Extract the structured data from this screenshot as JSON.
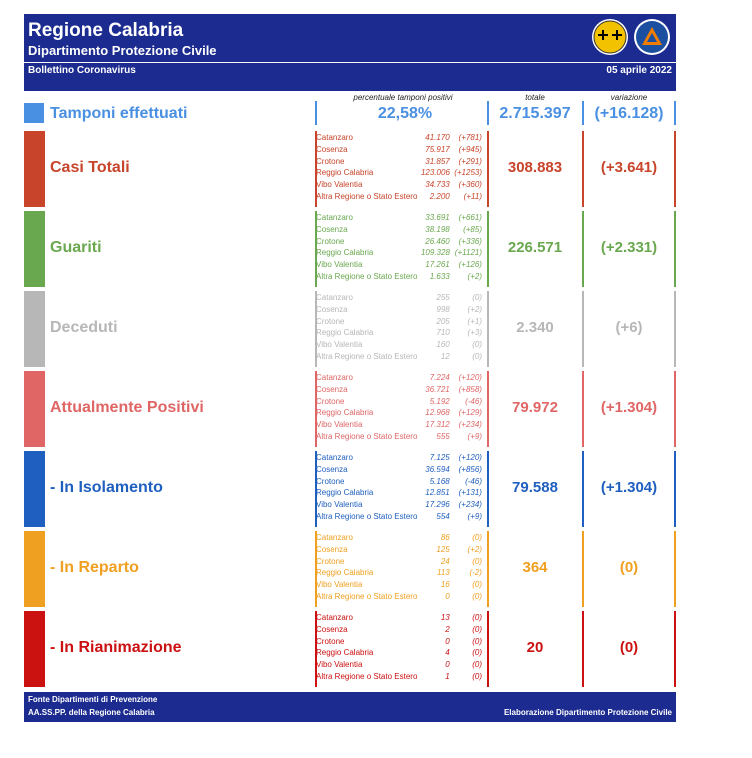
{
  "header": {
    "title": "Regione Calabria",
    "subtitle": "Dipartimento Protezione Civile",
    "bulletin": "Bollettino Coronavirus",
    "date": "05 aprile 2022"
  },
  "columns": {
    "pct_label": "percentuale tamponi positivi",
    "total_label": "totale",
    "variation_label": "variazione"
  },
  "tamponi": {
    "label": "Tamponi effettuati",
    "pct": "22,58%",
    "total": "2.715.397",
    "variation": "(+16.128)",
    "color": "#4a90e2"
  },
  "sections": [
    {
      "label": "Casi Totali",
      "color": "#c8442a",
      "total": "308.883",
      "variation": "(+3.641)",
      "rows": [
        {
          "name": "Catanzaro",
          "value": "41.170",
          "delta": "(+781)"
        },
        {
          "name": "Cosenza",
          "value": "75.917",
          "delta": "(+945)"
        },
        {
          "name": "Crotone",
          "value": "31.857",
          "delta": "(+291)"
        },
        {
          "name": "Reggio Calabria",
          "value": "123.006",
          "delta": "(+1253)"
        },
        {
          "name": "Vibo Valentia",
          "value": "34.733",
          "delta": "(+360)"
        },
        {
          "name": "Altra Regione o Stato Estero",
          "value": "2.200",
          "delta": "(+11)"
        }
      ]
    },
    {
      "label": "Guariti",
      "color": "#6aa84f",
      "total": "226.571",
      "variation": "(+2.331)",
      "rows": [
        {
          "name": "Catanzaro",
          "value": "33.691",
          "delta": "(+661)"
        },
        {
          "name": "Cosenza",
          "value": "38.198",
          "delta": "(+85)"
        },
        {
          "name": "Crotone",
          "value": "26.460",
          "delta": "(+336)"
        },
        {
          "name": "Reggio Calabria",
          "value": "109.328",
          "delta": "(+1121)"
        },
        {
          "name": "Vibo Valentia",
          "value": "17.261",
          "delta": "(+126)"
        },
        {
          "name": "Altra Regione o Stato Estero",
          "value": "1.633",
          "delta": "(+2)"
        }
      ]
    },
    {
      "label": "Deceduti",
      "color": "#b7b7b7",
      "total": "2.340",
      "variation": "(+6)",
      "rows": [
        {
          "name": "Catanzaro",
          "value": "255",
          "delta": "(0)"
        },
        {
          "name": "Cosenza",
          "value": "998",
          "delta": "(+2)"
        },
        {
          "name": "Crotone",
          "value": "205",
          "delta": "(+1)"
        },
        {
          "name": "Reggio Calabria",
          "value": "710",
          "delta": "(+3)"
        },
        {
          "name": "Vibo Valentia",
          "value": "160",
          "delta": "(0)"
        },
        {
          "name": "Altra Regione o Stato Estero",
          "value": "12",
          "delta": "(0)"
        }
      ]
    },
    {
      "label": "Attualmente Positivi",
      "color": "#e06666",
      "total": "79.972",
      "variation": "(+1.304)",
      "rows": [
        {
          "name": "Catanzaro",
          "value": "7.224",
          "delta": "(+120)"
        },
        {
          "name": "Cosenza",
          "value": "36.721",
          "delta": "(+858)"
        },
        {
          "name": "Crotone",
          "value": "5.192",
          "delta": "(-46)"
        },
        {
          "name": "Reggio Calabria",
          "value": "12.968",
          "delta": "(+129)"
        },
        {
          "name": "Vibo Valentia",
          "value": "17.312",
          "delta": "(+234)"
        },
        {
          "name": "Altra Regione o Stato Estero",
          "value": "555",
          "delta": "(+9)"
        }
      ]
    },
    {
      "label": "- In Isolamento",
      "color": "#1f5fbf",
      "total": "79.588",
      "variation": "(+1.304)",
      "rows": [
        {
          "name": "Catanzaro",
          "value": "7.125",
          "delta": "(+120)"
        },
        {
          "name": "Cosenza",
          "value": "36.594",
          "delta": "(+856)"
        },
        {
          "name": "Crotone",
          "value": "5.168",
          "delta": "(-46)"
        },
        {
          "name": "Reggio Calabria",
          "value": "12.851",
          "delta": "(+131)"
        },
        {
          "name": "Vibo Valentia",
          "value": "17.296",
          "delta": "(+234)"
        },
        {
          "name": "Altra Regione o Stato Estero",
          "value": "554",
          "delta": "(+9)"
        }
      ]
    },
    {
      "label": "- In Reparto",
      "color": "#f0a020",
      "total": "364",
      "variation": "(0)",
      "rows": [
        {
          "name": "Catanzaro",
          "value": "86",
          "delta": "(0)"
        },
        {
          "name": "Cosenza",
          "value": "125",
          "delta": "(+2)"
        },
        {
          "name": "Crotone",
          "value": "24",
          "delta": "(0)"
        },
        {
          "name": "Reggio Calabria",
          "value": "113",
          "delta": "(-2)"
        },
        {
          "name": "Vibo Valentia",
          "value": "16",
          "delta": "(0)"
        },
        {
          "name": "Altra Regione o Stato Estero",
          "value": "0",
          "delta": "(0)"
        }
      ]
    },
    {
      "label": "- In Rianimazione",
      "color": "#cc1111",
      "total": "20",
      "variation": "(0)",
      "rows": [
        {
          "name": "Catanzaro",
          "value": "13",
          "delta": "(0)"
        },
        {
          "name": "Cosenza",
          "value": "2",
          "delta": "(0)"
        },
        {
          "name": "Crotone",
          "value": "0",
          "delta": "(0)"
        },
        {
          "name": "Reggio Calabria",
          "value": "4",
          "delta": "(0)"
        },
        {
          "name": "Vibo Valentia",
          "value": "0",
          "delta": "(0)"
        },
        {
          "name": "Altra Regione o Stato Estero",
          "value": "1",
          "delta": "(0)"
        }
      ]
    }
  ],
  "footer": {
    "source_line1": "Fonte Dipartimenti di Prevenzione",
    "source_line2": "AA.SS.PP.  della Regione Calabria",
    "credit": "Elaborazione Dipartimento Protezione Civile"
  }
}
